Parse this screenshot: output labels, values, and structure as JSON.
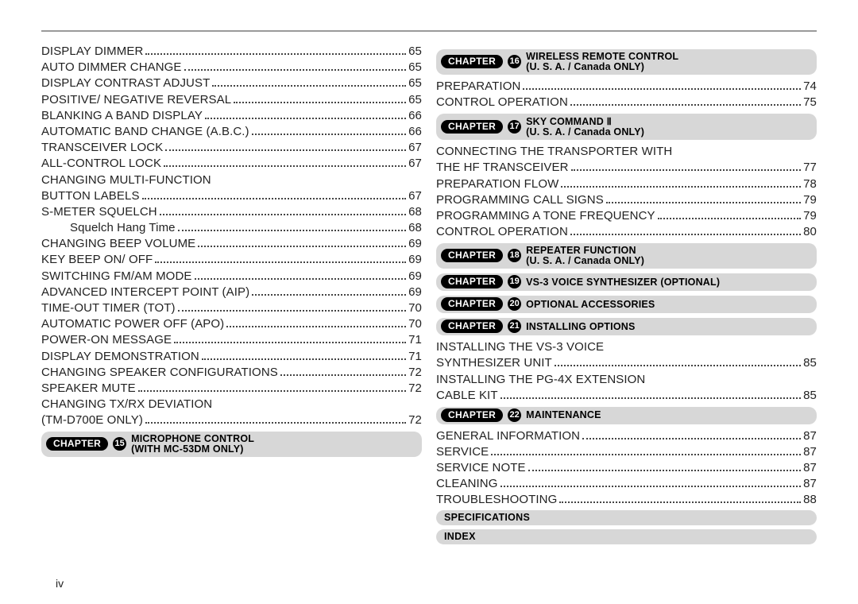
{
  "page_number": "iv",
  "colors": {
    "rule": "#9a9a9a",
    "bar_bg": "#d7d7d7",
    "pill_bg": "#000000",
    "pill_fg": "#ffffff",
    "text": "#222222"
  },
  "left": {
    "entries": [
      {
        "label": "DISPLAY DIMMER",
        "page": "65"
      },
      {
        "label": "AUTO DIMMER CHANGE",
        "page": "65"
      },
      {
        "label": "DISPLAY CONTRAST ADJUST",
        "page": "65"
      },
      {
        "label": "POSITIVE/ NEGATIVE REVERSAL",
        "page": "65"
      },
      {
        "label": "BLANKING A BAND DISPLAY",
        "page": "66"
      },
      {
        "label": "AUTOMATIC BAND CHANGE (A.B.C.)",
        "page": "66"
      },
      {
        "label": "TRANSCEIVER LOCK",
        "page": "67"
      },
      {
        "label": "ALL-CONTROL LOCK",
        "page": "67"
      },
      {
        "label": "CHANGING MULTI-FUNCTION",
        "label2": "BUTTON LABELS",
        "page": "67",
        "wrap": true
      },
      {
        "label": "S-METER SQUELCH",
        "page": "68"
      },
      {
        "label": "Squelch Hang Time",
        "page": "68",
        "indent": true
      },
      {
        "label": "CHANGING BEEP VOLUME",
        "page": "69"
      },
      {
        "label": "KEY BEEP ON/ OFF",
        "page": "69"
      },
      {
        "label": "SWITCHING FM/AM MODE",
        "page": "69"
      },
      {
        "label": "ADVANCED INTERCEPT POINT (AIP)",
        "page": "69"
      },
      {
        "label": "TIME-OUT TIMER (TOT)",
        "page": "70"
      },
      {
        "label": "AUTOMATIC POWER OFF (APO)",
        "page": "70"
      },
      {
        "label": "POWER-ON MESSAGE",
        "page": "71"
      },
      {
        "label": "DISPLAY DEMONSTRATION",
        "page": "71"
      },
      {
        "label": "CHANGING SPEAKER CONFIGURATIONS",
        "page": "72"
      },
      {
        "label": "SPEAKER MUTE",
        "page": "72"
      },
      {
        "label": "CHANGING TX/RX DEVIATION",
        "label2": "(TM-D700E ONLY)",
        "page": "72",
        "wrap": true
      }
    ],
    "chapter": {
      "word": "CHAPTER",
      "num": "15",
      "title_l1": "MICROPHONE CONTROL",
      "title_l2": "(WITH MC-53DM ONLY)"
    }
  },
  "right": {
    "blocks": [
      {
        "type": "chapter",
        "word": "CHAPTER",
        "num": "16",
        "title_l1": "WIRELESS REMOTE CONTROL",
        "title_l2": "(U. S. A. / Canada ONLY)"
      },
      {
        "type": "entry",
        "label": "PREPARATION",
        "page": "74"
      },
      {
        "type": "entry",
        "label": "CONTROL OPERATION",
        "page": "75"
      },
      {
        "type": "chapter",
        "word": "CHAPTER",
        "num": "17",
        "title_l1": "SKY COMMAND Ⅱ",
        "title_l2": "(U. S. A. / Canada ONLY)"
      },
      {
        "type": "entry",
        "label": "CONNECTING THE TRANSPORTER WITH",
        "label2": "THE HF TRANSCEIVER",
        "page": "77",
        "wrap": true
      },
      {
        "type": "entry",
        "label": "PREPARATION FLOW",
        "page": "78"
      },
      {
        "type": "entry",
        "label": "PROGRAMMING CALL SIGNS",
        "page": "79"
      },
      {
        "type": "entry",
        "label": "PROGRAMMING A TONE FREQUENCY",
        "page": "79"
      },
      {
        "type": "entry",
        "label": "CONTROL OPERATION",
        "page": "80"
      },
      {
        "type": "chapter",
        "word": "CHAPTER",
        "num": "18",
        "title_l1": "REPEATER FUNCTION",
        "title_l2": "(U. S. A. / Canada ONLY)"
      },
      {
        "type": "chapter",
        "word": "CHAPTER",
        "num": "19",
        "title_l1": "VS-3 VOICE SYNTHESIZER (OPTIONAL)"
      },
      {
        "type": "chapter",
        "word": "CHAPTER",
        "num": "20",
        "title_l1": "OPTIONAL ACCESSORIES"
      },
      {
        "type": "chapter",
        "word": "CHAPTER",
        "num": "21",
        "title_l1": "INSTALLING OPTIONS"
      },
      {
        "type": "entry",
        "label": "INSTALLING THE VS-3 VOICE",
        "label2": "SYNTHESIZER UNIT",
        "page": "85",
        "wrap": true
      },
      {
        "type": "entry",
        "label": "INSTALLING THE PG-4X EXTENSION",
        "label2": "CABLE KIT",
        "page": "85",
        "wrap": true
      },
      {
        "type": "chapter",
        "word": "CHAPTER",
        "num": "22",
        "title_l1": "MAINTENANCE"
      },
      {
        "type": "entry",
        "label": "GENERAL INFORMATION",
        "page": "87"
      },
      {
        "type": "entry",
        "label": "SERVICE",
        "page": "87"
      },
      {
        "type": "entry",
        "label": "SERVICE NOTE",
        "page": "87"
      },
      {
        "type": "entry",
        "label": "CLEANING",
        "page": "87"
      },
      {
        "type": "entry",
        "label": "TROUBLESHOOTING",
        "page": "88"
      },
      {
        "type": "simple",
        "label": "SPECIFICATIONS"
      },
      {
        "type": "simple",
        "label": "INDEX"
      }
    ]
  }
}
